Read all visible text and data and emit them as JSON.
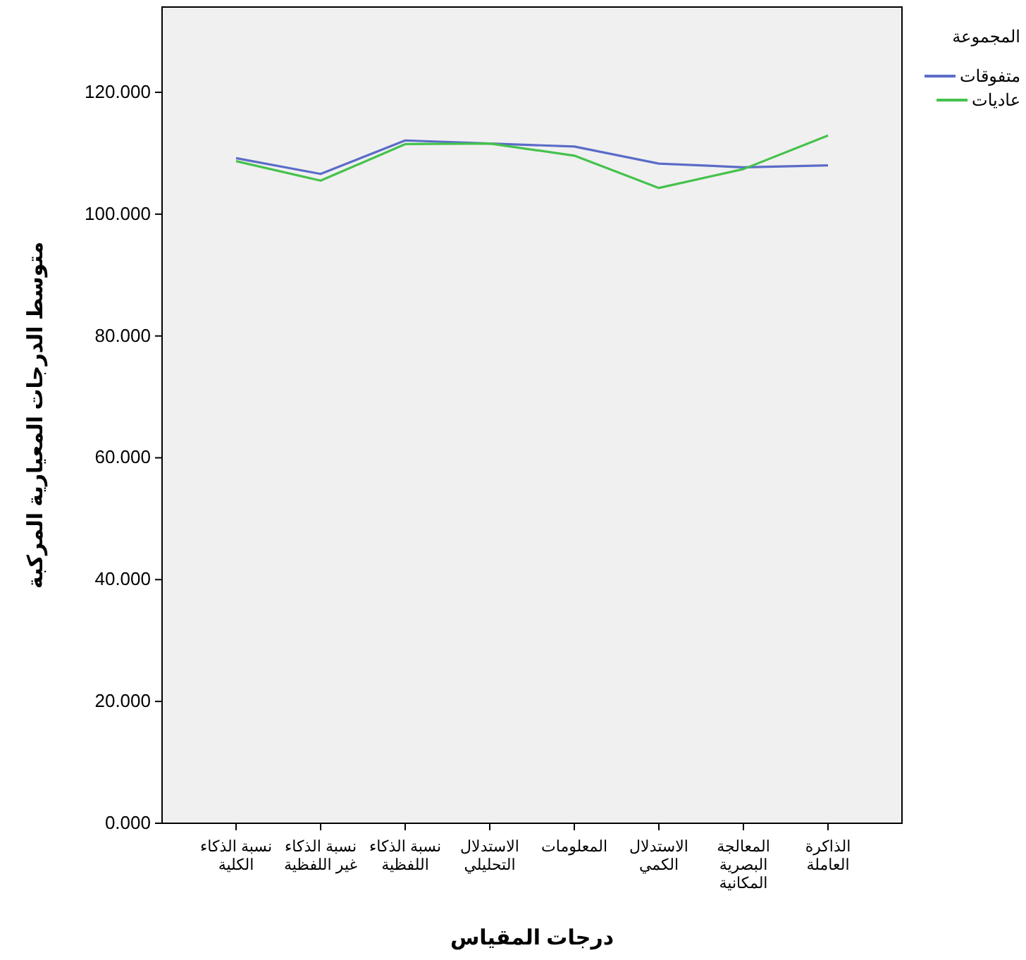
{
  "chart_data": {
    "type": "line",
    "xlabel": "درجات المقياس",
    "ylabel": "متوسط الدرجات المعيارية المركبة",
    "legend_title": "المجموعة",
    "categories": [
      "نسبة الذكاء الكلية",
      "نسبة الذكاء غير اللفظية",
      "نسبة الذكاء اللفظية",
      "الاستدلال التحليلي",
      "المعلومات",
      "الاستدلال الكمي",
      "المعالجة البصرية المكانية",
      "الذاكرة العاملة"
    ],
    "series": [
      {
        "name": "متفوقات",
        "color": "#5a6cc8",
        "values": [
          109.2,
          106.6,
          112.1,
          111.6,
          111.1,
          108.3,
          107.7,
          108.0
        ]
      },
      {
        "name": "عاديات",
        "color": "#45c24c",
        "values": [
          108.7,
          105.5,
          111.5,
          111.6,
          109.6,
          104.3,
          107.4,
          112.9
        ]
      }
    ],
    "ylim": [
      0,
      134
    ],
    "yticks": [
      {
        "value": 0,
        "label": "0.000"
      },
      {
        "value": 20,
        "label": "20.000"
      },
      {
        "value": 40,
        "label": "40.000"
      },
      {
        "value": 60,
        "label": "60.000"
      },
      {
        "value": 80,
        "label": "80.000"
      },
      {
        "value": 100,
        "label": "100.000"
      },
      {
        "value": 120,
        "label": "120.000"
      }
    ],
    "grid": false,
    "legend": "right",
    "marker": "none",
    "line_style": "solid"
  }
}
